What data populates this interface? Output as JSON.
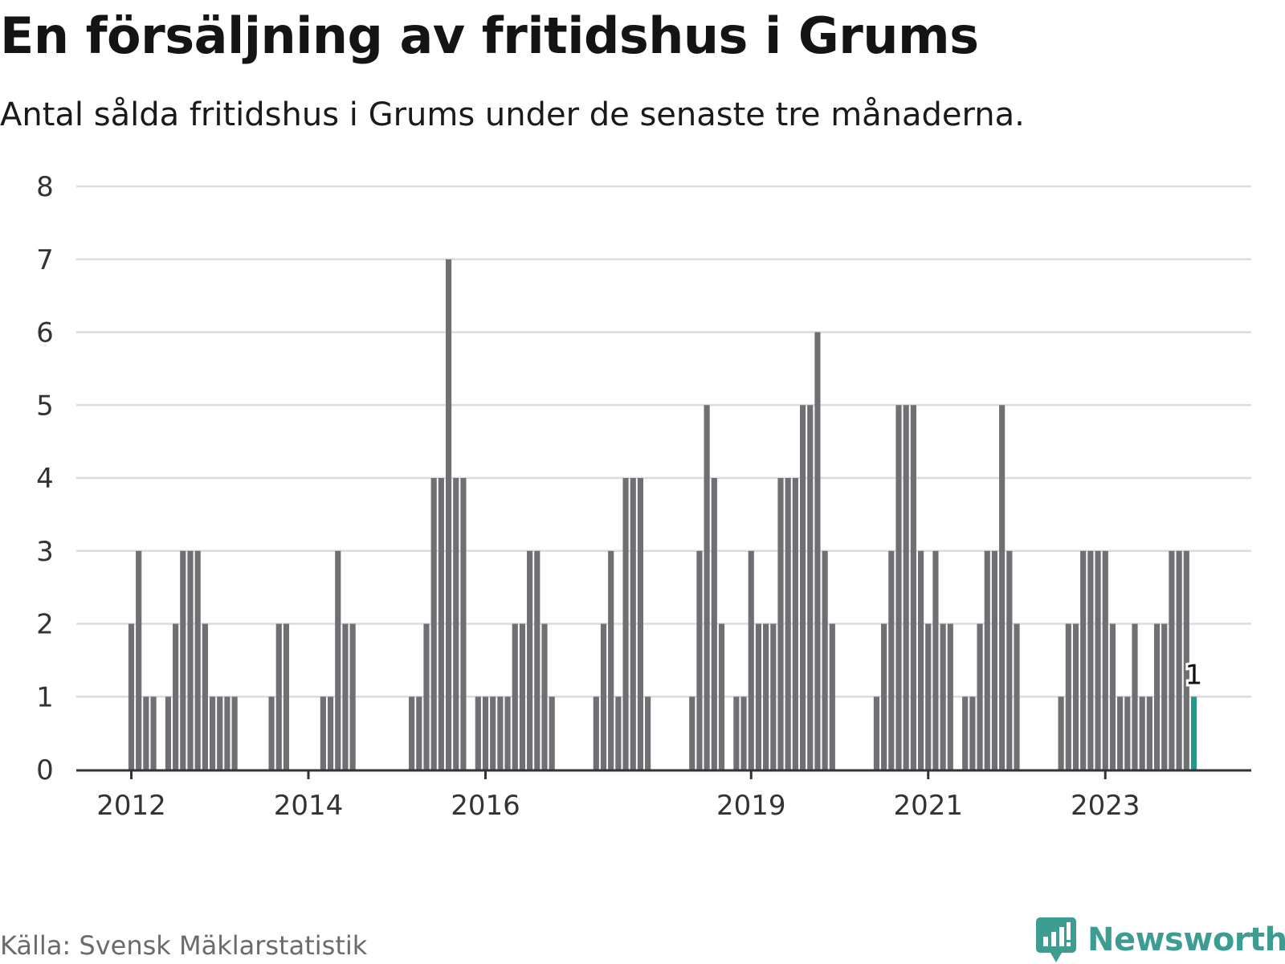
{
  "header": {
    "title": "En försäljning av fritidshus i Grums",
    "subtitle": "Antal sålda fritidshus i Grums under de senaste tre månaderna."
  },
  "footer": {
    "source": "Källa: Svensk Mäklarstatistik",
    "brand": "Newsworthy"
  },
  "colors": {
    "bar": "#707074",
    "highlight": "#1f9a8f",
    "grid": "#dcdcdc",
    "axis": "#333333",
    "brand": "#3d9d92"
  },
  "chart_data": {
    "type": "bar",
    "title": "En försäljning av fritidshus i Grums",
    "subtitle": "Antal sålda fritidshus i Grums under de senaste tre månaderna.",
    "ylim": [
      0,
      8
    ],
    "yticks": [
      0,
      1,
      2,
      3,
      4,
      5,
      6,
      7,
      8
    ],
    "grid": true,
    "x_start": "2011-01",
    "x_end": "2024-03",
    "xtick_labels": [
      {
        "label": "2012",
        "month": "2012-01"
      },
      {
        "label": "2014",
        "month": "2014-01"
      },
      {
        "label": "2016",
        "month": "2016-01"
      },
      {
        "label": "2019",
        "month": "2019-01"
      },
      {
        "label": "2021",
        "month": "2021-01"
      },
      {
        "label": "2023",
        "month": "2023-01"
      }
    ],
    "bars": [
      {
        "month": "2012-01",
        "value": 2
      },
      {
        "month": "2012-02",
        "value": 3
      },
      {
        "month": "2012-03",
        "value": 1
      },
      {
        "month": "2012-04",
        "value": 1
      },
      {
        "month": "2012-06",
        "value": 1
      },
      {
        "month": "2012-07",
        "value": 2
      },
      {
        "month": "2012-08",
        "value": 3
      },
      {
        "month": "2012-09",
        "value": 3
      },
      {
        "month": "2012-10",
        "value": 3
      },
      {
        "month": "2012-11",
        "value": 2
      },
      {
        "month": "2012-12",
        "value": 1
      },
      {
        "month": "2013-01",
        "value": 1
      },
      {
        "month": "2013-02",
        "value": 1
      },
      {
        "month": "2013-03",
        "value": 1
      },
      {
        "month": "2013-08",
        "value": 1
      },
      {
        "month": "2013-09",
        "value": 2
      },
      {
        "month": "2013-10",
        "value": 2
      },
      {
        "month": "2014-03",
        "value": 1
      },
      {
        "month": "2014-04",
        "value": 1
      },
      {
        "month": "2014-05",
        "value": 3
      },
      {
        "month": "2014-06",
        "value": 2
      },
      {
        "month": "2014-07",
        "value": 2
      },
      {
        "month": "2015-03",
        "value": 1
      },
      {
        "month": "2015-04",
        "value": 1
      },
      {
        "month": "2015-05",
        "value": 2
      },
      {
        "month": "2015-06",
        "value": 4
      },
      {
        "month": "2015-07",
        "value": 4
      },
      {
        "month": "2015-08",
        "value": 7
      },
      {
        "month": "2015-09",
        "value": 4
      },
      {
        "month": "2015-10",
        "value": 4
      },
      {
        "month": "2015-12",
        "value": 1
      },
      {
        "month": "2016-01",
        "value": 1
      },
      {
        "month": "2016-02",
        "value": 1
      },
      {
        "month": "2016-03",
        "value": 1
      },
      {
        "month": "2016-04",
        "value": 1
      },
      {
        "month": "2016-05",
        "value": 2
      },
      {
        "month": "2016-06",
        "value": 2
      },
      {
        "month": "2016-07",
        "value": 3
      },
      {
        "month": "2016-08",
        "value": 3
      },
      {
        "month": "2016-09",
        "value": 2
      },
      {
        "month": "2016-10",
        "value": 1
      },
      {
        "month": "2017-04",
        "value": 1
      },
      {
        "month": "2017-05",
        "value": 2
      },
      {
        "month": "2017-06",
        "value": 3
      },
      {
        "month": "2017-07",
        "value": 1
      },
      {
        "month": "2017-08",
        "value": 4
      },
      {
        "month": "2017-09",
        "value": 4
      },
      {
        "month": "2017-10",
        "value": 4
      },
      {
        "month": "2017-11",
        "value": 1
      },
      {
        "month": "2018-05",
        "value": 1
      },
      {
        "month": "2018-06",
        "value": 3
      },
      {
        "month": "2018-07",
        "value": 5
      },
      {
        "month": "2018-08",
        "value": 4
      },
      {
        "month": "2018-09",
        "value": 2
      },
      {
        "month": "2018-11",
        "value": 1
      },
      {
        "month": "2018-12",
        "value": 1
      },
      {
        "month": "2019-01",
        "value": 3
      },
      {
        "month": "2019-02",
        "value": 2
      },
      {
        "month": "2019-03",
        "value": 2
      },
      {
        "month": "2019-04",
        "value": 2
      },
      {
        "month": "2019-05",
        "value": 4
      },
      {
        "month": "2019-06",
        "value": 4
      },
      {
        "month": "2019-07",
        "value": 4
      },
      {
        "month": "2019-08",
        "value": 5
      },
      {
        "month": "2019-09",
        "value": 5
      },
      {
        "month": "2019-10",
        "value": 6
      },
      {
        "month": "2019-11",
        "value": 3
      },
      {
        "month": "2019-12",
        "value": 2
      },
      {
        "month": "2020-06",
        "value": 1
      },
      {
        "month": "2020-07",
        "value": 2
      },
      {
        "month": "2020-08",
        "value": 3
      },
      {
        "month": "2020-09",
        "value": 5
      },
      {
        "month": "2020-10",
        "value": 5
      },
      {
        "month": "2020-11",
        "value": 5
      },
      {
        "month": "2020-12",
        "value": 3
      },
      {
        "month": "2021-01",
        "value": 2
      },
      {
        "month": "2021-02",
        "value": 3
      },
      {
        "month": "2021-03",
        "value": 2
      },
      {
        "month": "2021-04",
        "value": 2
      },
      {
        "month": "2021-06",
        "value": 1
      },
      {
        "month": "2021-07",
        "value": 1
      },
      {
        "month": "2021-08",
        "value": 2
      },
      {
        "month": "2021-09",
        "value": 3
      },
      {
        "month": "2021-10",
        "value": 3
      },
      {
        "month": "2021-11",
        "value": 5
      },
      {
        "month": "2021-12",
        "value": 3
      },
      {
        "month": "2022-01",
        "value": 2
      },
      {
        "month": "2022-07",
        "value": 1
      },
      {
        "month": "2022-08",
        "value": 2
      },
      {
        "month": "2022-09",
        "value": 2
      },
      {
        "month": "2022-10",
        "value": 3
      },
      {
        "month": "2022-11",
        "value": 3
      },
      {
        "month": "2022-12",
        "value": 3
      },
      {
        "month": "2023-01",
        "value": 3
      },
      {
        "month": "2023-02",
        "value": 2
      },
      {
        "month": "2023-03",
        "value": 1
      },
      {
        "month": "2023-04",
        "value": 1
      },
      {
        "month": "2023-05",
        "value": 2
      },
      {
        "month": "2023-06",
        "value": 1
      },
      {
        "month": "2023-07",
        "value": 1
      },
      {
        "month": "2023-08",
        "value": 2
      },
      {
        "month": "2023-09",
        "value": 2
      },
      {
        "month": "2023-10",
        "value": 3
      },
      {
        "month": "2023-11",
        "value": 3
      },
      {
        "month": "2023-12",
        "value": 3
      },
      {
        "month": "2024-01",
        "value": 1,
        "highlight": true,
        "label": "1"
      }
    ]
  }
}
